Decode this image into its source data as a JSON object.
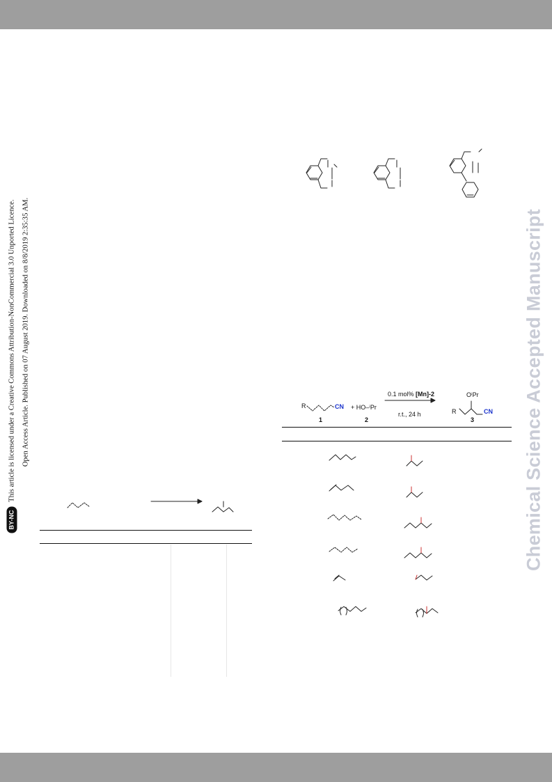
{
  "header": {
    "bar_color": "#9e9e9e"
  },
  "footer": {
    "bar_color": "#9e9e9e"
  },
  "watermark": {
    "text": "Chemical Science Accepted Manuscript",
    "color": "#c9ccd6"
  },
  "license_notice": {
    "line1": "Open Access Article. Published on 07 August 2019. Downloaded on 8/8/2019 2:35:35 AM.",
    "badge": "BY-NC",
    "line2": "This article is licensed under a Creative Commons Attribution-NonCommercial 3.0 Unported Licence."
  },
  "scheme": {
    "reactant_r": "R",
    "cn_label": "CN",
    "plus_reagent": "+ HO–ⁱPr",
    "conditions_line1_prefix": "0.1 mol%",
    "conditions_catalyst": "[Mn]-2",
    "conditions_line2": "r.t., 24 h",
    "product_oipr": "OⁱPr",
    "product_r": "R",
    "product_cn": "CN",
    "label_1": "1",
    "label_2": "2",
    "label_3": "3",
    "accent_color": "#1a33cc"
  }
}
